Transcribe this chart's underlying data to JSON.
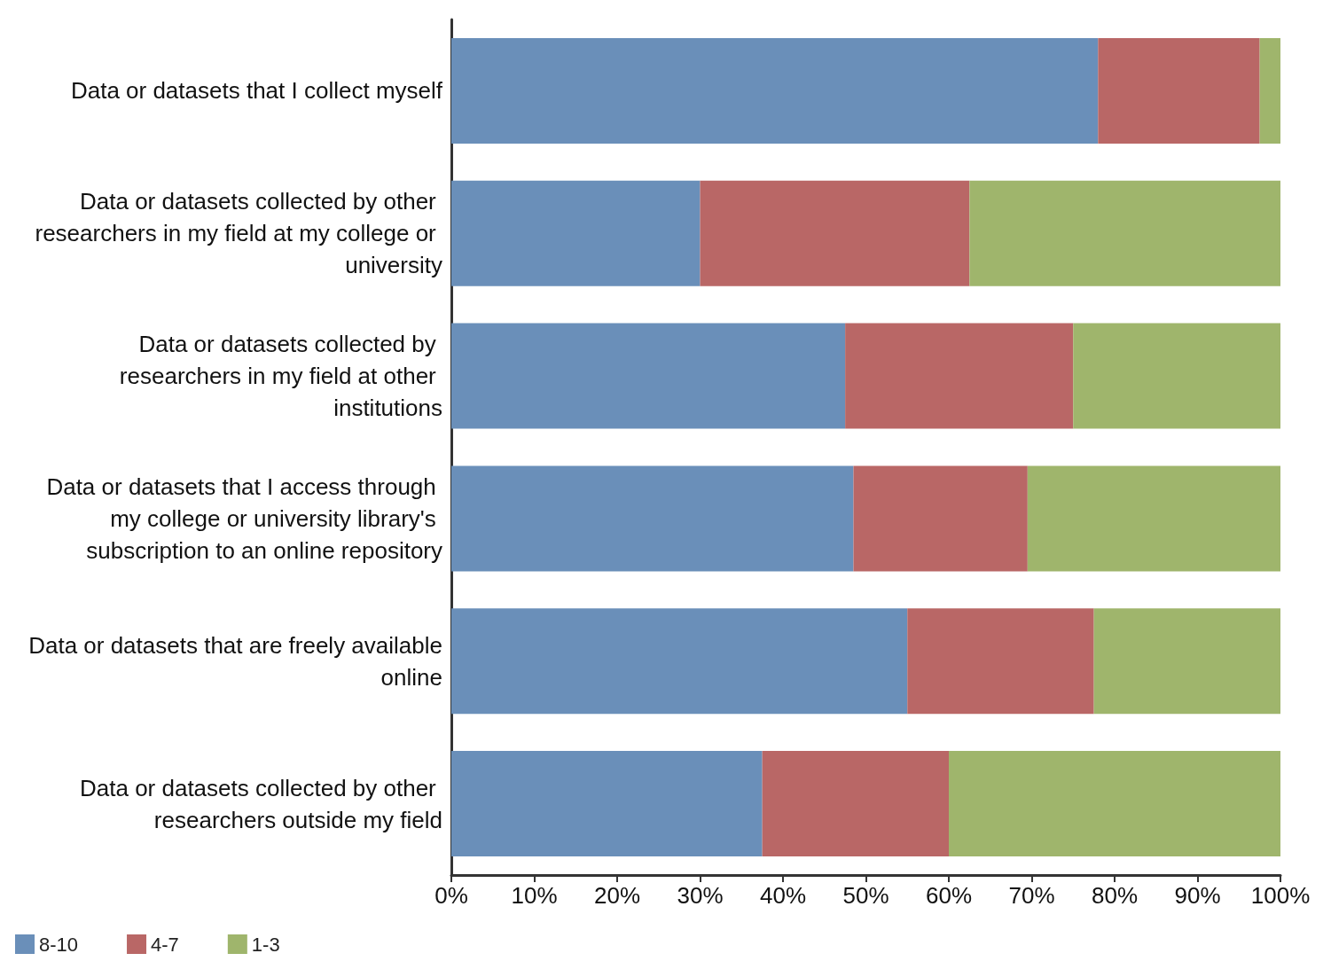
{
  "chart_data": {
    "type": "bar",
    "orientation": "horizontal",
    "stacked": true,
    "categories": [
      "Data or datasets that I collect myself",
      "Data or datasets collected by other researchers in my field at my college or university",
      "Data or datasets collected by researchers in my field at other institutions",
      "Data or datasets that I access through my college or university library's subscription to an online repository",
      "Data or datasets that are freely available online",
      "Data or datasets collected by other researchers outside my field"
    ],
    "series": [
      {
        "name": "8-10",
        "color": "#6a8fb9",
        "values": [
          78,
          30,
          47.5,
          48.5,
          55,
          37.5
        ]
      },
      {
        "name": "4-7",
        "color": "#b96766",
        "values": [
          19.5,
          32.5,
          27.5,
          21,
          22.5,
          22.5
        ]
      },
      {
        "name": "1-3",
        "color": "#9fb56c",
        "values": [
          2.5,
          37.5,
          25,
          30.5,
          22.5,
          40
        ]
      }
    ],
    "xlim": [
      0,
      100
    ],
    "xticks": [
      {
        "value": 0,
        "label": "0%"
      },
      {
        "value": 10,
        "label": "10%"
      },
      {
        "value": 20,
        "label": "20%"
      },
      {
        "value": 30,
        "label": "30%"
      },
      {
        "value": 40,
        "label": "40%"
      },
      {
        "value": 50,
        "label": "50%"
      },
      {
        "value": 60,
        "label": "60%"
      },
      {
        "value": 70,
        "label": "70%"
      },
      {
        "value": 80,
        "label": "80%"
      },
      {
        "value": 90,
        "label": "90%"
      },
      {
        "value": 100,
        "label": "100%"
      }
    ],
    "grid": false,
    "legend": "bottom left"
  }
}
